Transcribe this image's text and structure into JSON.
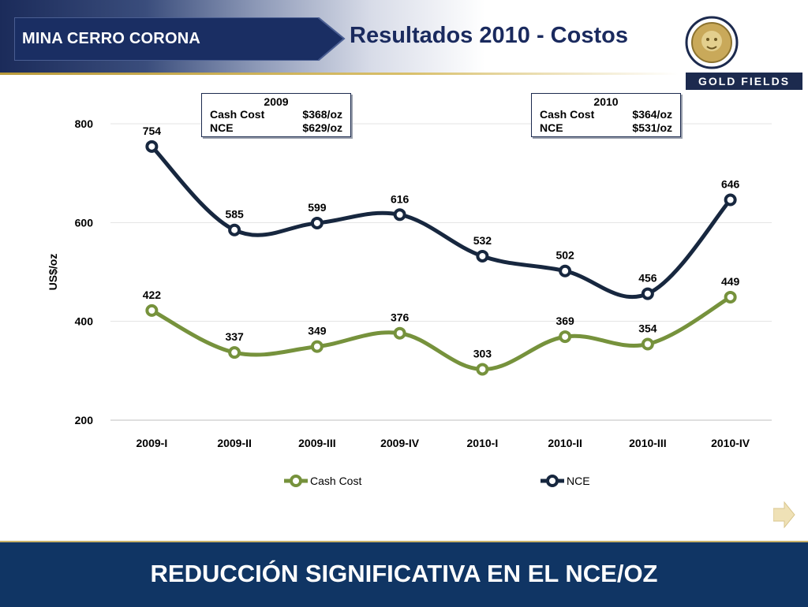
{
  "header": {
    "mine_label": "MINA CERRO CORONA",
    "title": "Resultados 2010 - Costos",
    "logo_text": "GOLD FIELDS",
    "brand_navy": "#1b2b5a",
    "accent_gold": "#b99a3a"
  },
  "summary_boxes": [
    {
      "year": "2009",
      "cash_cost_label": "Cash Cost",
      "cash_cost_value": "$368/oz",
      "nce_label": "NCE",
      "nce_value": "$629/oz"
    },
    {
      "year": "2010",
      "cash_cost_label": "Cash Cost",
      "cash_cost_value": "$364/oz",
      "nce_label": "NCE",
      "nce_value": "$531/oz"
    }
  ],
  "chart_data": {
    "type": "line",
    "categories": [
      "2009-I",
      "2009-II",
      "2009-III",
      "2009-IV",
      "2010-I",
      "2010-II",
      "2010-III",
      "2010-IV"
    ],
    "series": [
      {
        "name": "Cash Cost",
        "color": "#76923c",
        "values": [
          422,
          337,
          349,
          376,
          303,
          369,
          354,
          449
        ]
      },
      {
        "name": "NCE",
        "color": "#17273f",
        "values": [
          754,
          585,
          599,
          616,
          532,
          502,
          456,
          646
        ]
      }
    ],
    "ylabel": "US$/oz",
    "ylim": [
      200,
      800
    ],
    "yticks": [
      200,
      400,
      600,
      800
    ],
    "grid": true,
    "smooth": true,
    "legend": "bottom"
  },
  "footer": {
    "message": "REDUCCIÓN SIGNIFICATIVA EN EL NCE/OZ"
  },
  "icons": {
    "next": "next-arrow-icon",
    "logo": "lion-emblem-icon"
  }
}
